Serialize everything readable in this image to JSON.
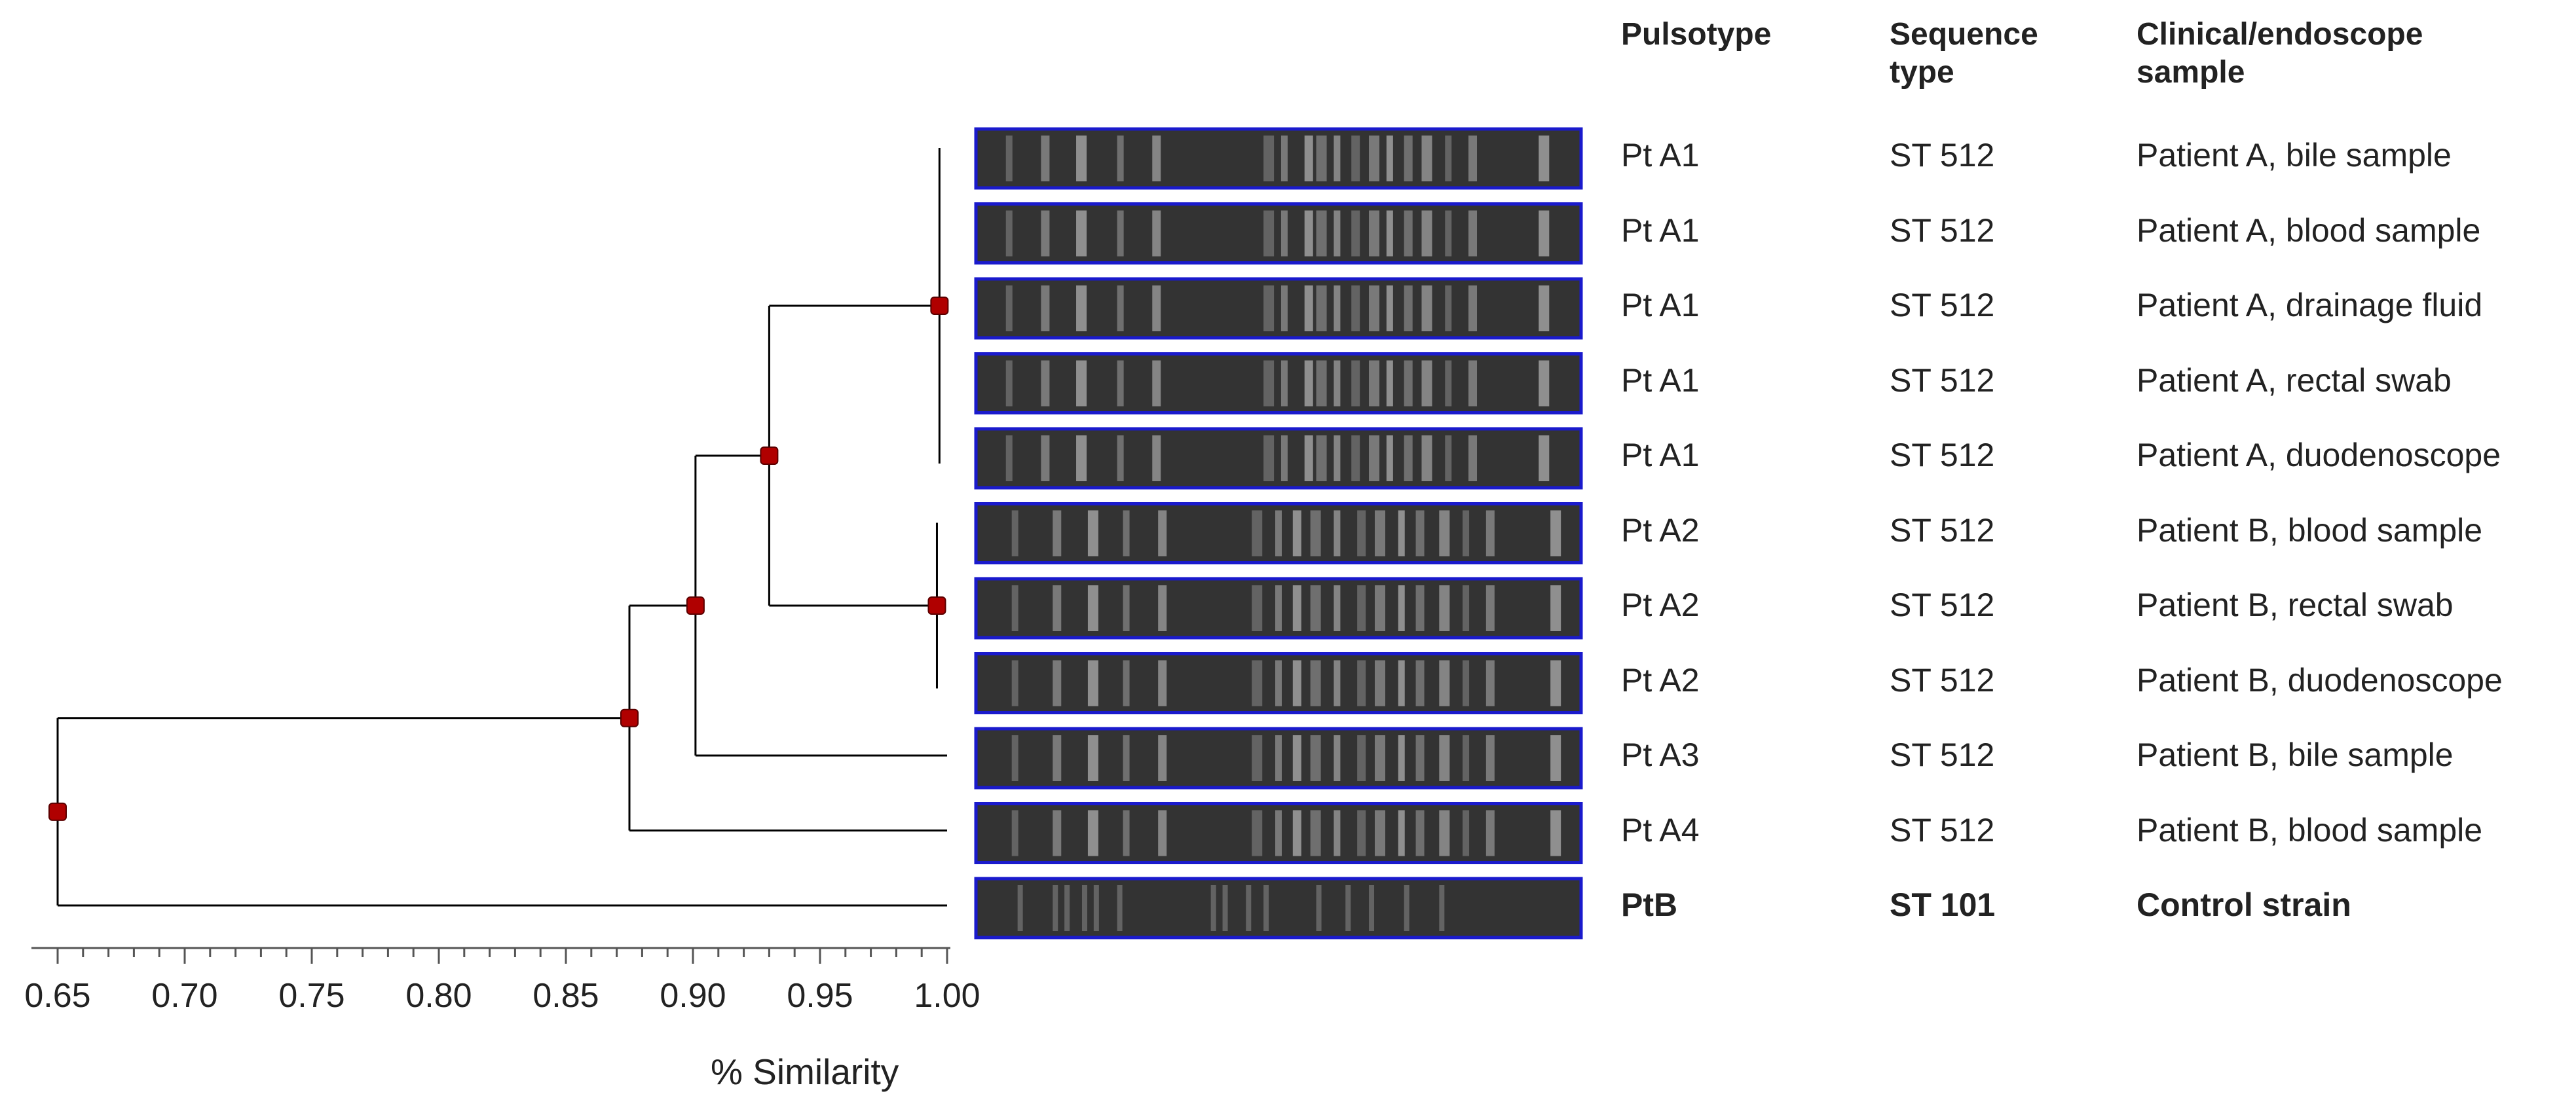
{
  "headers": {
    "pulsotype": "Pulsotype",
    "sequence_type": "Sequence type",
    "sample": "Clinical/endoscope sample"
  },
  "rows": [
    {
      "pulsotype": "Pt A1",
      "st": "ST 512",
      "sample": "Patient A, bile sample",
      "bold": false
    },
    {
      "pulsotype": "Pt A1",
      "st": "ST 512",
      "sample": "Patient A, blood sample",
      "bold": false
    },
    {
      "pulsotype": "Pt A1",
      "st": "ST 512",
      "sample": "Patient A, drainage fluid",
      "bold": false
    },
    {
      "pulsotype": "Pt A1",
      "st": "ST 512",
      "sample": "Patient A, rectal swab",
      "bold": false
    },
    {
      "pulsotype": "Pt A1",
      "st": "ST 512",
      "sample": "Patient A, duodenoscope",
      "bold": false
    },
    {
      "pulsotype": "Pt A2",
      "st": "ST 512",
      "sample": "Patient B, blood sample",
      "bold": false
    },
    {
      "pulsotype": "Pt A2",
      "st": "ST 512",
      "sample": "Patient B, rectal swab",
      "bold": false
    },
    {
      "pulsotype": "Pt A2",
      "st": "ST 512",
      "sample": "Patient B, duodenoscope",
      "bold": false
    },
    {
      "pulsotype": "Pt A3",
      "st": "ST 512",
      "sample": "Patient B, bile sample",
      "bold": false
    },
    {
      "pulsotype": "Pt A4",
      "st": "ST 512",
      "sample": "Patient B, blood sample",
      "bold": false
    },
    {
      "pulsotype": "PtB",
      "st": "ST 101",
      "sample": "Control strain",
      "bold": true
    }
  ],
  "axis": {
    "label": "% Similarity",
    "min": 0.65,
    "max": 1.0,
    "ticks": [
      "0.65",
      "0.70",
      "0.75",
      "0.80",
      "0.85",
      "0.90",
      "0.95",
      "1.00"
    ]
  },
  "clusters": [
    {
      "id": "A1",
      "similarity": 0.997,
      "leaves": [
        0,
        1,
        2,
        3,
        4
      ]
    },
    {
      "id": "A2",
      "similarity": 0.996,
      "leaves": [
        5,
        6,
        7
      ]
    },
    {
      "id": "A1A2",
      "similarity": 0.93,
      "children": [
        "A1",
        "A2"
      ]
    },
    {
      "id": "withA3",
      "similarity": 0.901,
      "children": [
        "A1A2",
        8
      ]
    },
    {
      "id": "withA4",
      "similarity": 0.875,
      "children": [
        "withA3",
        9
      ]
    },
    {
      "id": "root",
      "similarity": 0.65,
      "children": [
        "withA4",
        10
      ]
    }
  ],
  "colors": {
    "node": "#b00000",
    "gel_border": "#1a1acc",
    "gel_bg": "#333333",
    "band": "#bdbdbd",
    "line": "#000000"
  }
}
